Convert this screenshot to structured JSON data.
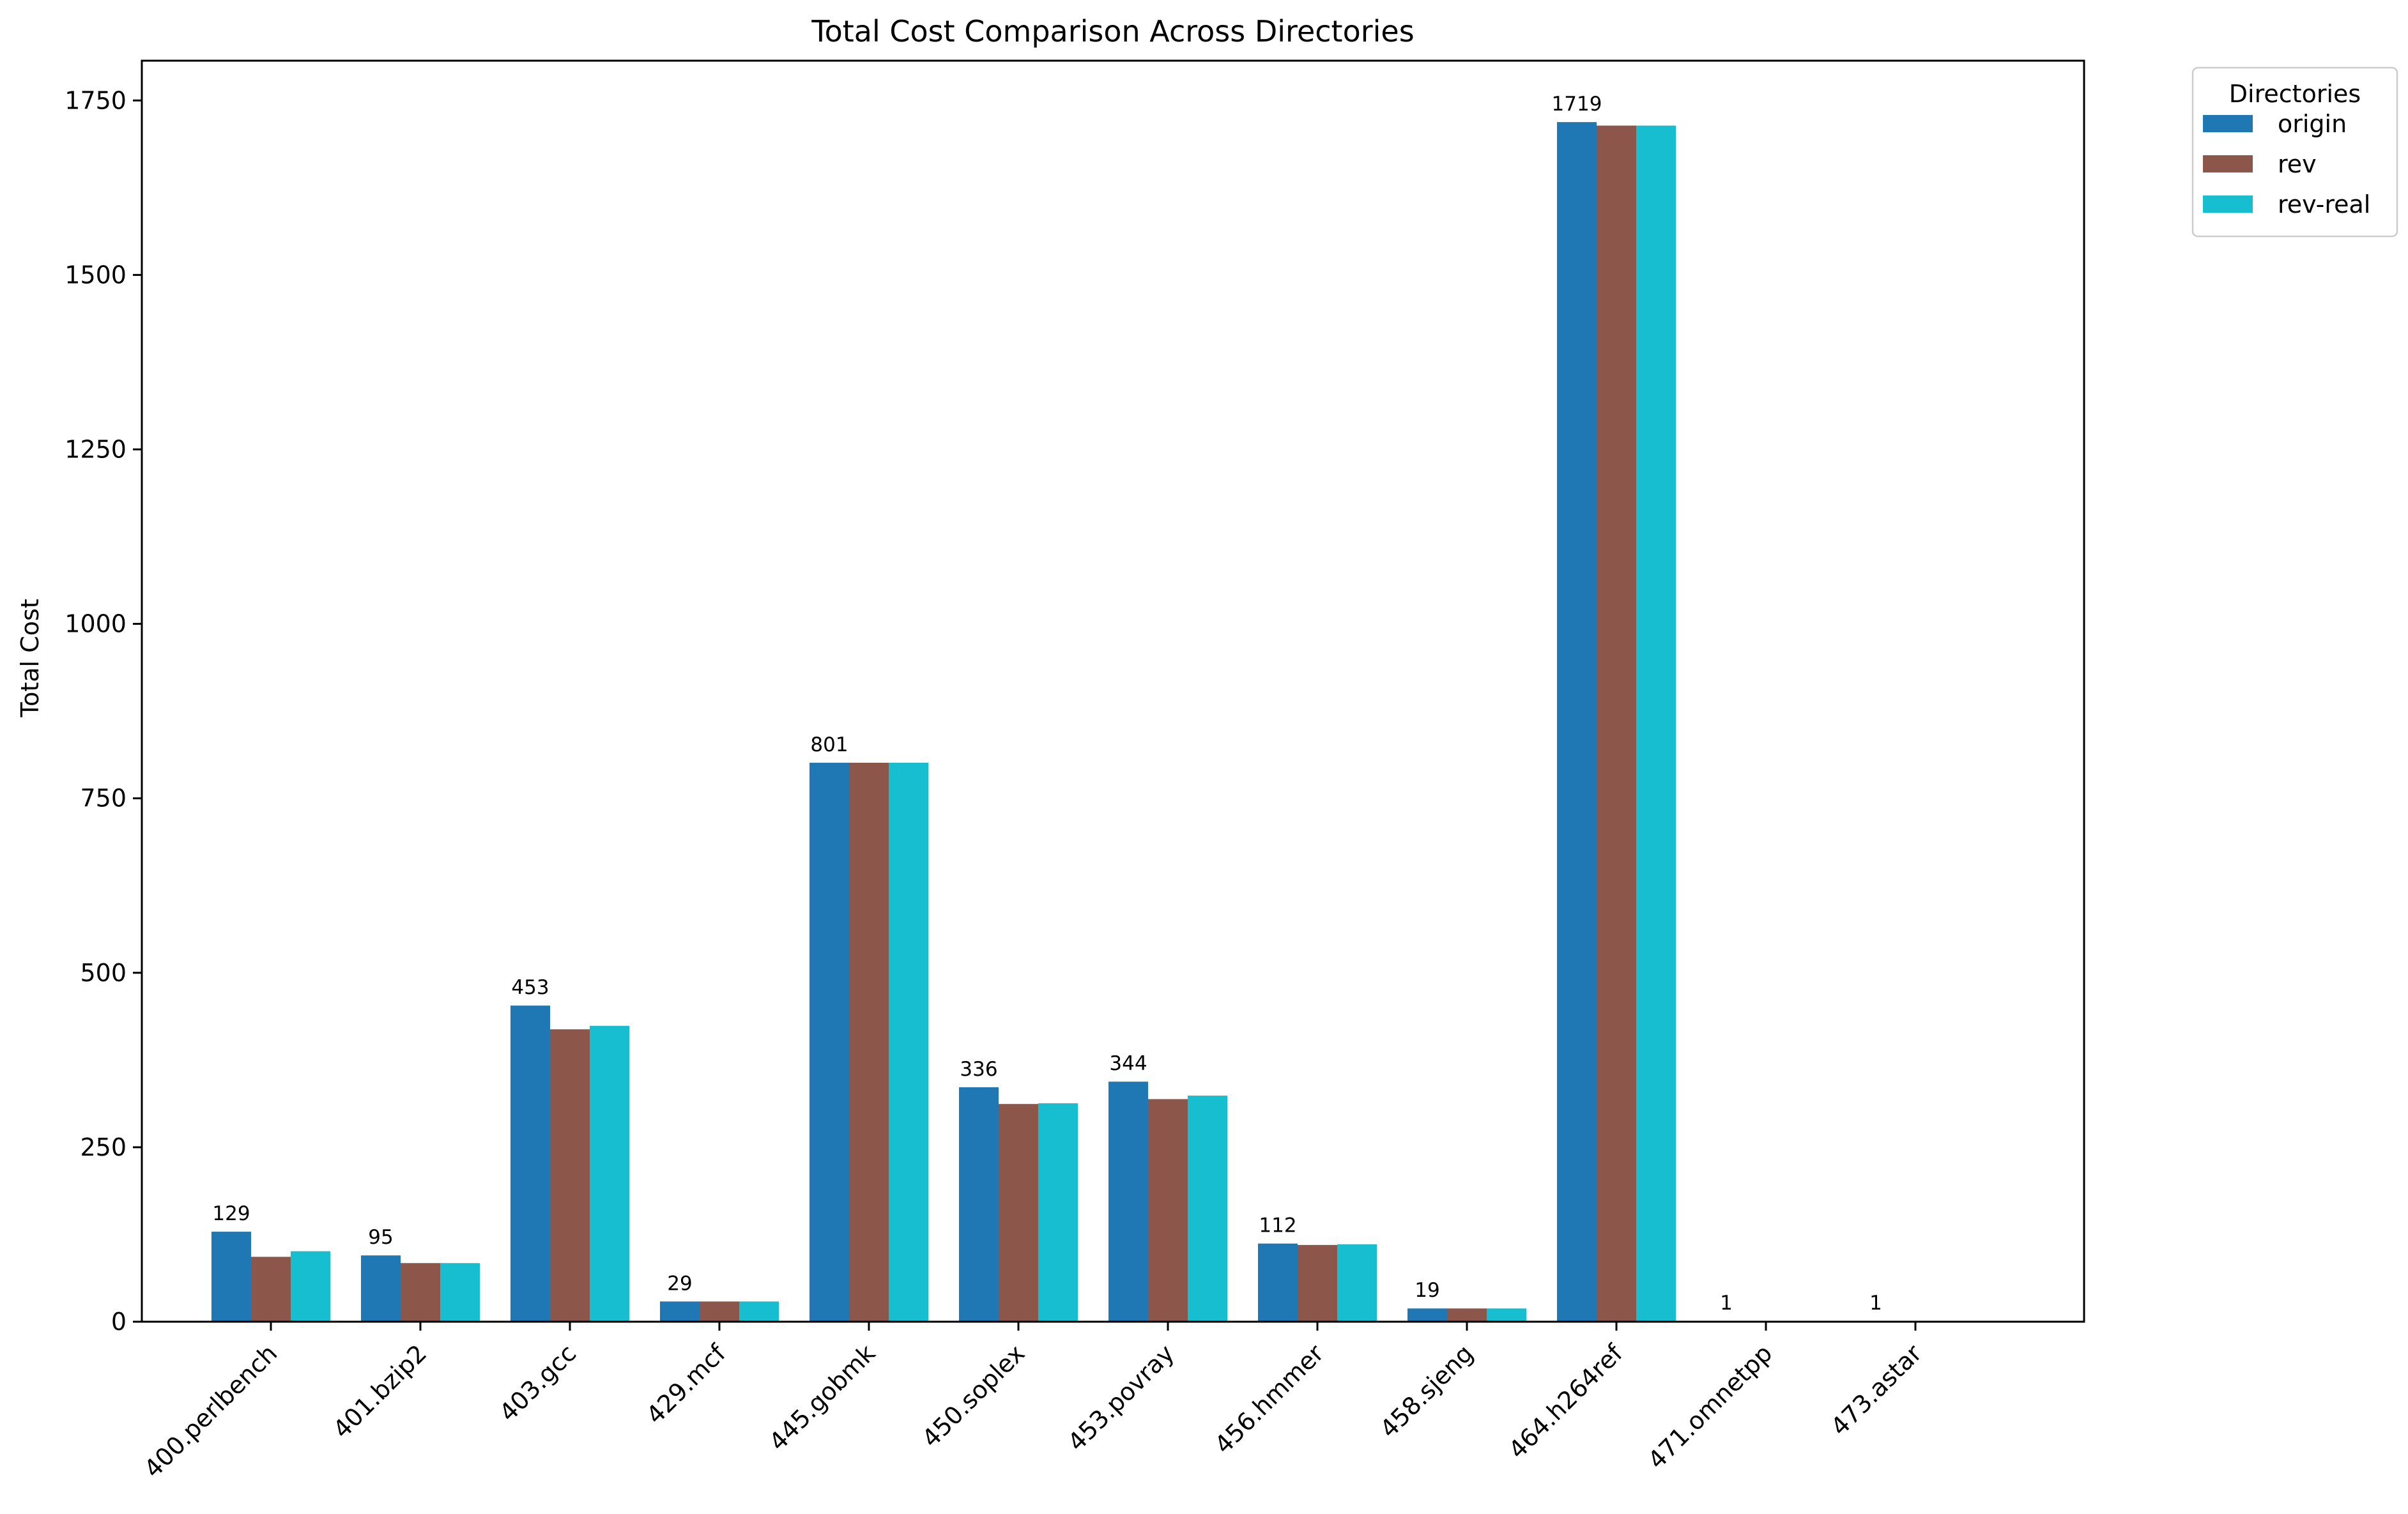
{
  "chart_data": {
    "type": "bar",
    "title": "Total Cost Comparison Across Directories",
    "xlabel": "",
    "ylabel": "Total Cost",
    "ylim": [
      0,
      1807
    ],
    "yticks": [
      0,
      250,
      500,
      750,
      1000,
      1250,
      1500,
      1750
    ],
    "categories": [
      "400.perlbench",
      "401.bzip2",
      "403.gcc",
      "429.mcf",
      "445.gobmk",
      "450.soplex",
      "453.povray",
      "456.hmmer",
      "458.sjeng",
      "464.h264ref",
      "471.omnetpp",
      "473.astar"
    ],
    "series": [
      {
        "name": "origin",
        "color": "#1f77b4",
        "values": [
          129,
          95,
          453,
          29,
          801,
          336,
          344,
          112,
          19,
          1719,
          1,
          1
        ]
      },
      {
        "name": "rev",
        "color": "#8c564b",
        "values": [
          93,
          84,
          419,
          29,
          801,
          312,
          319,
          110,
          19,
          1714,
          1,
          1
        ]
      },
      {
        "name": "rev-real",
        "color": "#17becf",
        "values": [
          101,
          84,
          424,
          29,
          801,
          313,
          324,
          111,
          19,
          1714,
          1,
          1
        ]
      }
    ],
    "data_labels": [
      "129",
      "95",
      "453",
      "29",
      "801",
      "336",
      "344",
      "112",
      "19",
      "1719",
      "1",
      "1"
    ],
    "legend": {
      "title": "Directories",
      "placement": "outside-upper-right"
    },
    "grid": false
  }
}
